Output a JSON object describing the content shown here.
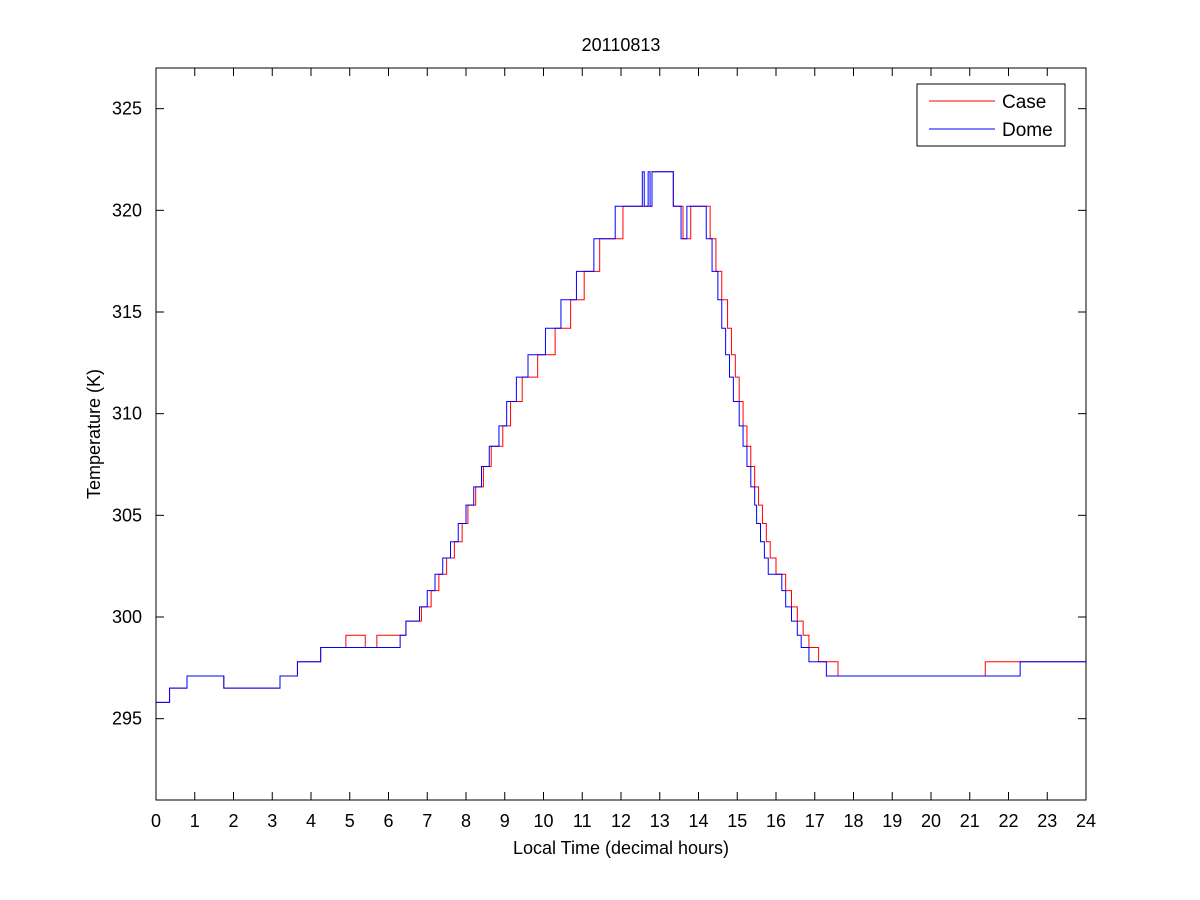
{
  "chart_data": {
    "type": "line",
    "title": "20110813",
    "xlabel": "Local Time (decimal hours)",
    "ylabel": "Temperature (K)",
    "xlim": [
      0,
      24
    ],
    "ylim": [
      291,
      327
    ],
    "xticks": [
      0,
      1,
      2,
      3,
      4,
      5,
      6,
      7,
      8,
      9,
      10,
      11,
      12,
      13,
      14,
      15,
      16,
      17,
      18,
      19,
      20,
      21,
      22,
      23,
      24
    ],
    "yticks": [
      295,
      300,
      305,
      310,
      315,
      320,
      325
    ],
    "grid": false,
    "legend_position": "top-right",
    "line_style": "step",
    "series": [
      {
        "name": "Case",
        "color": "#ff0000",
        "points": [
          [
            0.0,
            295.8
          ],
          [
            0.35,
            296.5
          ],
          [
            0.8,
            297.1
          ],
          [
            1.75,
            296.5
          ],
          [
            2.05,
            296.5
          ],
          [
            3.2,
            297.1
          ],
          [
            3.65,
            297.8
          ],
          [
            4.25,
            298.5
          ],
          [
            4.9,
            299.1
          ],
          [
            5.4,
            298.5
          ],
          [
            5.7,
            299.1
          ],
          [
            6.0,
            299.1
          ],
          [
            6.45,
            299.8
          ],
          [
            6.85,
            300.5
          ],
          [
            7.1,
            301.3
          ],
          [
            7.3,
            302.1
          ],
          [
            7.5,
            302.9
          ],
          [
            7.7,
            303.7
          ],
          [
            7.9,
            304.6
          ],
          [
            8.05,
            305.5
          ],
          [
            8.25,
            306.4
          ],
          [
            8.45,
            307.4
          ],
          [
            8.65,
            308.4
          ],
          [
            8.95,
            309.4
          ],
          [
            9.15,
            310.6
          ],
          [
            9.45,
            311.8
          ],
          [
            9.85,
            312.9
          ],
          [
            10.3,
            312.9
          ],
          [
            10.3,
            314.2
          ],
          [
            10.7,
            315.6
          ],
          [
            11.05,
            317.0
          ],
          [
            11.45,
            318.6
          ],
          [
            12.05,
            320.2
          ],
          [
            12.65,
            320.2
          ],
          [
            12.8,
            321.9
          ],
          [
            13.0,
            321.9
          ],
          [
            13.15,
            321.9
          ],
          [
            13.35,
            320.2
          ],
          [
            13.6,
            318.6
          ],
          [
            13.8,
            320.2
          ],
          [
            14.2,
            320.2
          ],
          [
            14.3,
            318.6
          ],
          [
            14.45,
            317.0
          ],
          [
            14.6,
            315.6
          ],
          [
            14.75,
            314.2
          ],
          [
            14.85,
            312.9
          ],
          [
            14.95,
            311.8
          ],
          [
            15.05,
            310.6
          ],
          [
            15.15,
            309.4
          ],
          [
            15.25,
            308.4
          ],
          [
            15.35,
            307.4
          ],
          [
            15.45,
            306.4
          ],
          [
            15.55,
            305.5
          ],
          [
            15.65,
            304.6
          ],
          [
            15.75,
            303.7
          ],
          [
            15.85,
            302.9
          ],
          [
            16.0,
            302.1
          ],
          [
            16.25,
            301.3
          ],
          [
            16.4,
            300.5
          ],
          [
            16.55,
            299.8
          ],
          [
            16.7,
            299.1
          ],
          [
            16.85,
            298.5
          ],
          [
            17.1,
            297.8
          ],
          [
            17.6,
            297.1
          ],
          [
            21.4,
            297.8
          ],
          [
            24.0,
            297.8
          ]
        ]
      },
      {
        "name": "Dome",
        "color": "#0000ff",
        "points": [
          [
            0.0,
            295.8
          ],
          [
            0.35,
            296.5
          ],
          [
            0.8,
            297.1
          ],
          [
            1.75,
            296.5
          ],
          [
            3.2,
            297.1
          ],
          [
            3.65,
            297.8
          ],
          [
            4.25,
            298.5
          ],
          [
            6.0,
            298.5
          ],
          [
            6.3,
            299.1
          ],
          [
            6.45,
            299.8
          ],
          [
            6.8,
            300.5
          ],
          [
            7.0,
            301.3
          ],
          [
            7.2,
            302.1
          ],
          [
            7.4,
            302.9
          ],
          [
            7.6,
            303.7
          ],
          [
            7.8,
            304.6
          ],
          [
            8.0,
            305.5
          ],
          [
            8.2,
            306.4
          ],
          [
            8.4,
            307.4
          ],
          [
            8.6,
            308.4
          ],
          [
            8.85,
            309.4
          ],
          [
            9.05,
            310.6
          ],
          [
            9.3,
            311.8
          ],
          [
            9.6,
            312.9
          ],
          [
            10.05,
            314.2
          ],
          [
            10.45,
            315.6
          ],
          [
            10.85,
            317.0
          ],
          [
            11.3,
            318.6
          ],
          [
            11.85,
            320.2
          ],
          [
            12.55,
            321.9
          ],
          [
            12.6,
            320.2
          ],
          [
            12.7,
            321.9
          ],
          [
            12.75,
            320.2
          ],
          [
            12.8,
            321.9
          ],
          [
            13.25,
            321.9
          ],
          [
            13.35,
            320.2
          ],
          [
            13.55,
            318.6
          ],
          [
            13.7,
            320.2
          ],
          [
            14.2,
            318.6
          ],
          [
            14.35,
            317.0
          ],
          [
            14.5,
            315.6
          ],
          [
            14.6,
            314.2
          ],
          [
            14.7,
            312.9
          ],
          [
            14.8,
            311.8
          ],
          [
            14.9,
            310.6
          ],
          [
            15.05,
            309.4
          ],
          [
            15.15,
            308.4
          ],
          [
            15.25,
            307.4
          ],
          [
            15.35,
            306.4
          ],
          [
            15.45,
            305.5
          ],
          [
            15.5,
            304.6
          ],
          [
            15.6,
            303.7
          ],
          [
            15.7,
            302.9
          ],
          [
            15.8,
            302.1
          ],
          [
            16.15,
            301.3
          ],
          [
            16.25,
            300.5
          ],
          [
            16.4,
            299.8
          ],
          [
            16.55,
            299.1
          ],
          [
            16.65,
            298.5
          ],
          [
            16.85,
            297.8
          ],
          [
            17.3,
            297.1
          ],
          [
            22.3,
            297.8
          ],
          [
            24.0,
            297.8
          ]
        ]
      }
    ]
  }
}
